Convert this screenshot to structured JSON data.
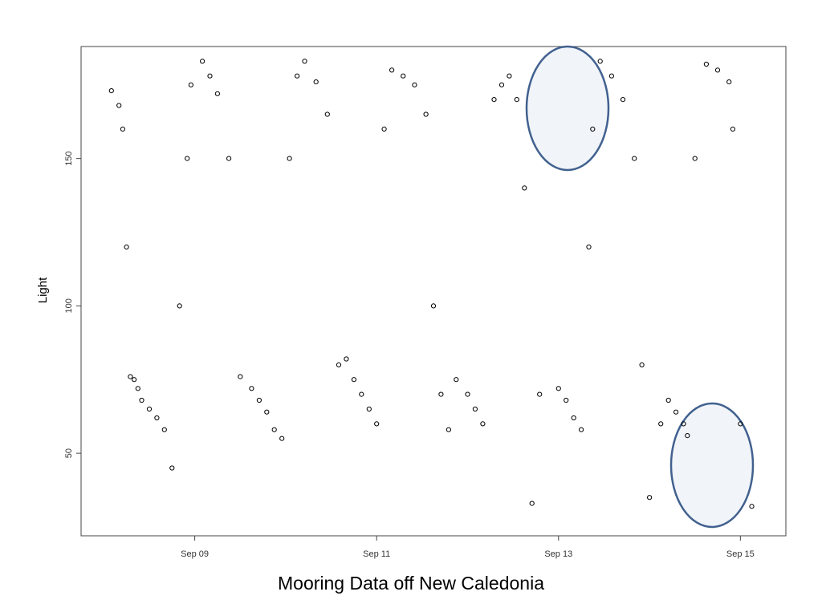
{
  "chart_data": {
    "type": "scatter",
    "ylabel": "Light",
    "x_ticks": [
      {
        "date": "2013-09-09",
        "label": "Sep 09"
      },
      {
        "date": "2013-09-11",
        "label": "Sep 11"
      },
      {
        "date": "2013-09-13",
        "label": "Sep 13"
      },
      {
        "date": "2013-09-15",
        "label": "Sep 15"
      }
    ],
    "y_ticks": [
      50,
      100,
      150
    ],
    "xlim": [
      "2013-09-07 18:00",
      "2013-09-15 12:00"
    ],
    "ylim": [
      22,
      188
    ],
    "grid": false,
    "marker": "open-circle",
    "series": [
      {
        "x": [
          "2013-09-08 02:00",
          "2013-09-08 04:00",
          "2013-09-08 05:00",
          "2013-09-08 06:00",
          "2013-09-08 07:00",
          "2013-09-08 08:00",
          "2013-09-08 09:00",
          "2013-09-08 10:00",
          "2013-09-08 12:00",
          "2013-09-08 14:00",
          "2013-09-08 16:00",
          "2013-09-08 18:00",
          "2013-09-08 20:00",
          "2013-09-08 22:00",
          "2013-09-08 23:00",
          "2013-09-09 02:00",
          "2013-09-09 04:00",
          "2013-09-09 06:00",
          "2013-09-09 09:00",
          "2013-09-09 12:00",
          "2013-09-09 15:00",
          "2013-09-09 17:00",
          "2013-09-09 19:00",
          "2013-09-09 21:00",
          "2013-09-09 23:00",
          "2013-09-10 01:00",
          "2013-09-10 03:00",
          "2013-09-10 05:00",
          "2013-09-10 08:00",
          "2013-09-10 11:00",
          "2013-09-10 14:00",
          "2013-09-10 16:00",
          "2013-09-10 18:00",
          "2013-09-10 20:00",
          "2013-09-10 22:00",
          "2013-09-11 00:00",
          "2013-09-11 02:00",
          "2013-09-11 04:00",
          "2013-09-11 07:00",
          "2013-09-11 10:00",
          "2013-09-11 13:00",
          "2013-09-11 15:00",
          "2013-09-11 17:00",
          "2013-09-11 19:00",
          "2013-09-11 21:00",
          "2013-09-12 00:00",
          "2013-09-12 02:00",
          "2013-09-12 04:00",
          "2013-09-12 07:00",
          "2013-09-12 09:00",
          "2013-09-12 11:00",
          "2013-09-12 13:00",
          "2013-09-12 15:00",
          "2013-09-12 17:00",
          "2013-09-12 19:00",
          "2013-09-13 00:00",
          "2013-09-13 02:00",
          "2013-09-13 04:00",
          "2013-09-13 06:00",
          "2013-09-13 08:00",
          "2013-09-13 09:00",
          "2013-09-13 11:00",
          "2013-09-13 14:00",
          "2013-09-13 17:00",
          "2013-09-13 20:00",
          "2013-09-13 22:00",
          "2013-09-14 00:00",
          "2013-09-14 03:00",
          "2013-09-14 05:00",
          "2013-09-14 07:00",
          "2013-09-14 09:00",
          "2013-09-14 10:00",
          "2013-09-14 12:00",
          "2013-09-14 15:00",
          "2013-09-14 18:00",
          "2013-09-14 21:00",
          "2013-09-14 22:00",
          "2013-09-15 00:00",
          "2013-09-15 03:00"
        ],
        "y": [
          173,
          168,
          160,
          120,
          76,
          75,
          72,
          68,
          65,
          62,
          58,
          45,
          100,
          150,
          175,
          183,
          178,
          172,
          150,
          76,
          72,
          68,
          64,
          58,
          55,
          150,
          178,
          183,
          176,
          165,
          80,
          82,
          75,
          70,
          65,
          60,
          160,
          180,
          178,
          175,
          165,
          100,
          70,
          58,
          75,
          70,
          65,
          60,
          170,
          175,
          178,
          170,
          140,
          33,
          70,
          72,
          68,
          62,
          58,
          120,
          160,
          183,
          178,
          170,
          150,
          80,
          35,
          60,
          68,
          64,
          60,
          56,
          150,
          182,
          180,
          176,
          160,
          60,
          32
        ]
      }
    ]
  },
  "caption": "Mooring Data off New Caledonia"
}
